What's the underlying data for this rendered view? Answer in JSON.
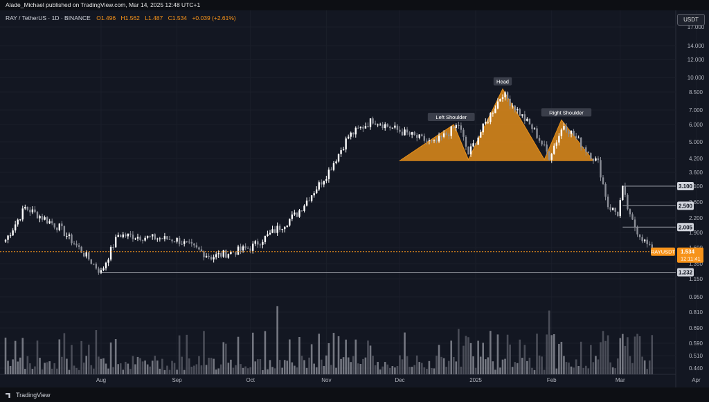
{
  "publisher_line": "Alade_Michael published on TradingView.com, Mar 14, 2025 12:48 UTC+1",
  "symbol": "RAY / TetherUS · 1D · BINANCE",
  "ohlc": {
    "o": "O1.496",
    "h": "H1.562",
    "l": "L1.487",
    "c": "C1.534",
    "chg": "+0.039 (+2.61%)"
  },
  "currency_button": "USDT",
  "footer_logo": "TradingView",
  "colors": {
    "up": "#ffffff",
    "down": "#8b8e97",
    "accent": "#f7931a",
    "fill": "#e8901a",
    "bg": "#131722"
  },
  "chart_data": {
    "type": "candlestick",
    "price_axis_labels": [
      "17.000",
      "14.000",
      "12.000",
      "10.000",
      "8.500",
      "7.000",
      "6.000",
      "5.000",
      "4.200",
      "3.600",
      "3.100",
      "2.600",
      "2.200",
      "1.900",
      "1.600",
      "1.350",
      "1.150",
      "0.950",
      "0.810",
      "0.690",
      "0.590",
      "0.510",
      "0.440"
    ],
    "time_axis_labels": [
      "Aug",
      "Sep",
      "Oct",
      "Nov",
      "Dec",
      "2025",
      "Feb",
      "Mar",
      "Apr"
    ],
    "price_labels": [
      {
        "text": "3.100",
        "price": 3.1
      },
      {
        "text": "2.500",
        "price": 2.5
      },
      {
        "text": "2.005",
        "price": 2.005
      },
      {
        "text": "1.232",
        "price": 1.232
      }
    ],
    "current": {
      "symbol": "RAYUSDT",
      "price": 1.534,
      "price_text": "1.534",
      "countdown": "12:11:41"
    },
    "pattern": {
      "shape_vertices": [
        {
          "date": "2024-12-01",
          "price": 4.1
        },
        {
          "date": "2024-12-23",
          "price": 6.0
        },
        {
          "date": "2024-12-29",
          "price": 4.15
        },
        {
          "date": "2025-01-12",
          "price": 8.8
        },
        {
          "date": "2025-01-29",
          "price": 4.15
        },
        {
          "date": "2025-02-05",
          "price": 6.3
        },
        {
          "date": "2025-02-18",
          "price": 4.1
        }
      ],
      "labels": [
        {
          "text": "Left Shoulder",
          "date": "2024-12-22",
          "price": 6.0
        },
        {
          "text": "Head",
          "date": "2025-01-12",
          "price": 8.8
        },
        {
          "text": "Right Shoulder",
          "date": "2025-02-07",
          "price": 6.3
        }
      ]
    },
    "key_points": [
      {
        "date": "2024-06-23",
        "price": 1.75
      },
      {
        "date": "2024-07-01",
        "price": 2.45
      },
      {
        "date": "2024-07-15",
        "price": 2.0
      },
      {
        "date": "2024-08-01",
        "price": 1.23
      },
      {
        "date": "2024-08-08",
        "price": 1.85
      },
      {
        "date": "2024-09-01",
        "price": 1.75
      },
      {
        "date": "2024-09-15",
        "price": 1.45
      },
      {
        "date": "2024-10-01",
        "price": 1.6
      },
      {
        "date": "2024-10-10",
        "price": 1.9
      },
      {
        "date": "2024-10-20",
        "price": 2.3
      },
      {
        "date": "2024-11-01",
        "price": 3.5
      },
      {
        "date": "2024-11-10",
        "price": 5.3
      },
      {
        "date": "2024-11-20",
        "price": 6.3
      },
      {
        "date": "2024-12-01",
        "price": 5.6
      },
      {
        "date": "2024-12-15",
        "price": 4.9
      },
      {
        "date": "2024-12-25",
        "price": 6.0
      },
      {
        "date": "2024-12-29",
        "price": 4.4
      },
      {
        "date": "2025-01-12",
        "price": 8.4
      },
      {
        "date": "2025-01-25",
        "price": 5.6
      },
      {
        "date": "2025-01-31",
        "price": 4.3
      },
      {
        "date": "2025-02-06",
        "price": 6.0
      },
      {
        "date": "2025-02-20",
        "price": 4.0
      },
      {
        "date": "2025-02-24",
        "price": 2.5
      },
      {
        "date": "2025-02-28",
        "price": 2.3
      },
      {
        "date": "2025-03-02",
        "price": 3.0
      },
      {
        "date": "2025-03-05",
        "price": 2.2
      },
      {
        "date": "2025-03-09",
        "price": 1.85
      },
      {
        "date": "2025-03-14",
        "price": 1.534
      }
    ]
  }
}
